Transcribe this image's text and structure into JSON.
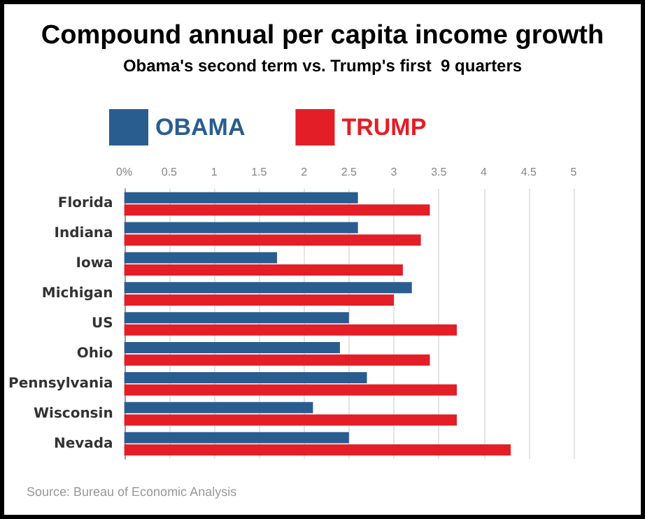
{
  "chart_data": {
    "type": "bar",
    "orientation": "horizontal",
    "title": "Compound annual per capita income growth",
    "subtitle": "Obama's second term vs. Trump's first  9 quarters",
    "categories": [
      "Florida",
      "Indiana",
      "Iowa",
      "Michigan",
      "US",
      "Ohio",
      "Pennsylvania",
      "Wisconsin",
      "Nevada"
    ],
    "series": [
      {
        "name": "OBAMA",
        "color": "#2a5d8f",
        "values": [
          2.6,
          2.6,
          1.7,
          3.2,
          2.5,
          2.4,
          2.7,
          2.1,
          2.5
        ]
      },
      {
        "name": "TRUMP",
        "color": "#e31e26",
        "values": [
          3.4,
          3.3,
          3.1,
          3.0,
          3.7,
          3.4,
          3.7,
          3.7,
          4.3
        ]
      }
    ],
    "xlim": [
      0,
      5
    ],
    "xticks": [
      {
        "value": 0,
        "label": "0%"
      },
      0.5,
      1,
      1.5,
      2,
      2.5,
      3,
      3.5,
      4,
      4.5,
      5
    ],
    "grid": "x",
    "legend": "top left",
    "annotations": [
      "Source: Bureau of Economic Analysis"
    ]
  }
}
